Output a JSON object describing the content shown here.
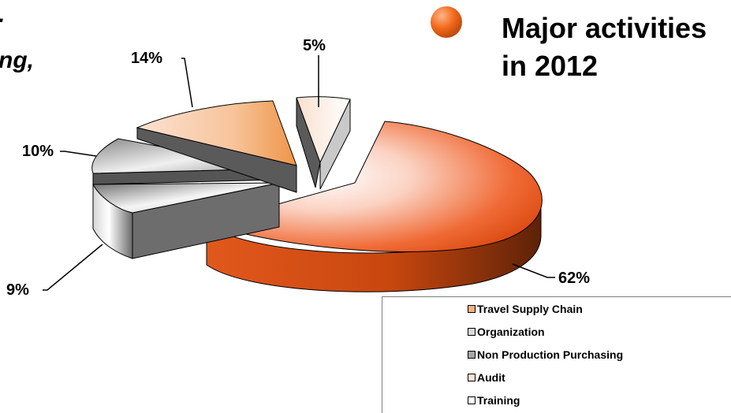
{
  "fragments": {
    "top": ".",
    "mid": "ng,"
  },
  "title": {
    "line1": "Major activities",
    "line2": "in 2012"
  },
  "chart_data": {
    "type": "pie",
    "style": "3d-exploded",
    "slices": [
      {
        "label": "Travel Supply Chain",
        "value": 62,
        "display": "62%",
        "color": "#e65a1c"
      },
      {
        "label": "Organization",
        "value": 9,
        "display": "9%",
        "color": "#8a8a8a"
      },
      {
        "label": "Non Production Purchasing",
        "value": 10,
        "display": "10%",
        "color": "#a9a9a9"
      },
      {
        "label": "Audit",
        "value": 14,
        "display": "14%",
        "color": "#f0a163"
      },
      {
        "label": "Training",
        "value": 5,
        "display": "5%",
        "color": "#cfcfcf"
      }
    ],
    "legend": {
      "placement": "bottom-right",
      "items": [
        {
          "label": "Travel Supply Chain",
          "color": "#f4b183"
        },
        {
          "label": "Organization",
          "color": "#d9d9d9"
        },
        {
          "label": "Non Production Purchasing",
          "color": "#a6a6a6"
        },
        {
          "label": "Audit",
          "color": "#fbe5d6"
        },
        {
          "label": "Training",
          "color": "#ffffff"
        }
      ]
    }
  }
}
